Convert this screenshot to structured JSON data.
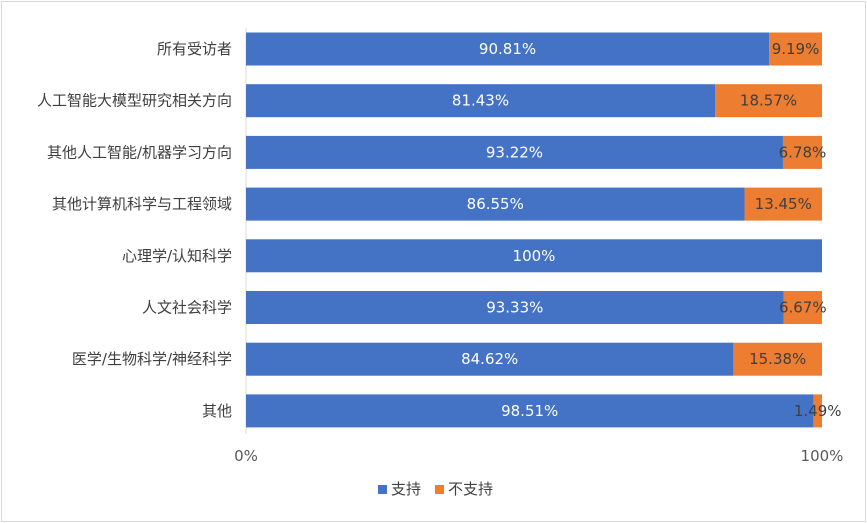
{
  "chart_data": {
    "type": "bar",
    "orientation": "horizontal",
    "stacked": "percent",
    "categories": [
      "所有受访者",
      "人工智能大模型研究相关方向",
      "其他人工智能/机器学习方向",
      "其他计算机科学与工程领域",
      "心理学/认知科学",
      "人文社会科学",
      "医学/生物科学/神经科学",
      "其他"
    ],
    "series": [
      {
        "name": "支持",
        "color": "#4472C4",
        "values": [
          90.81,
          81.43,
          93.22,
          86.55,
          100,
          93.33,
          84.62,
          98.51
        ],
        "labels": [
          "90.81%",
          "81.43%",
          "93.22%",
          "86.55%",
          "100%",
          "93.33%",
          "84.62%",
          "98.51%"
        ]
      },
      {
        "name": "不支持",
        "color": "#ED7D31",
        "values": [
          9.19,
          18.57,
          6.78,
          13.45,
          0,
          6.67,
          15.38,
          1.49
        ],
        "labels": [
          "9.19%",
          "18.57%",
          "6.78%",
          "13.45%",
          "",
          "6.67%",
          "15.38%",
          "1.49%"
        ]
      }
    ],
    "xlim": [
      0,
      100
    ],
    "x_ticks": [
      "0%",
      "100%"
    ],
    "grid": false,
    "legend": "bottom",
    "title": "",
    "xlabel": "",
    "ylabel": ""
  }
}
